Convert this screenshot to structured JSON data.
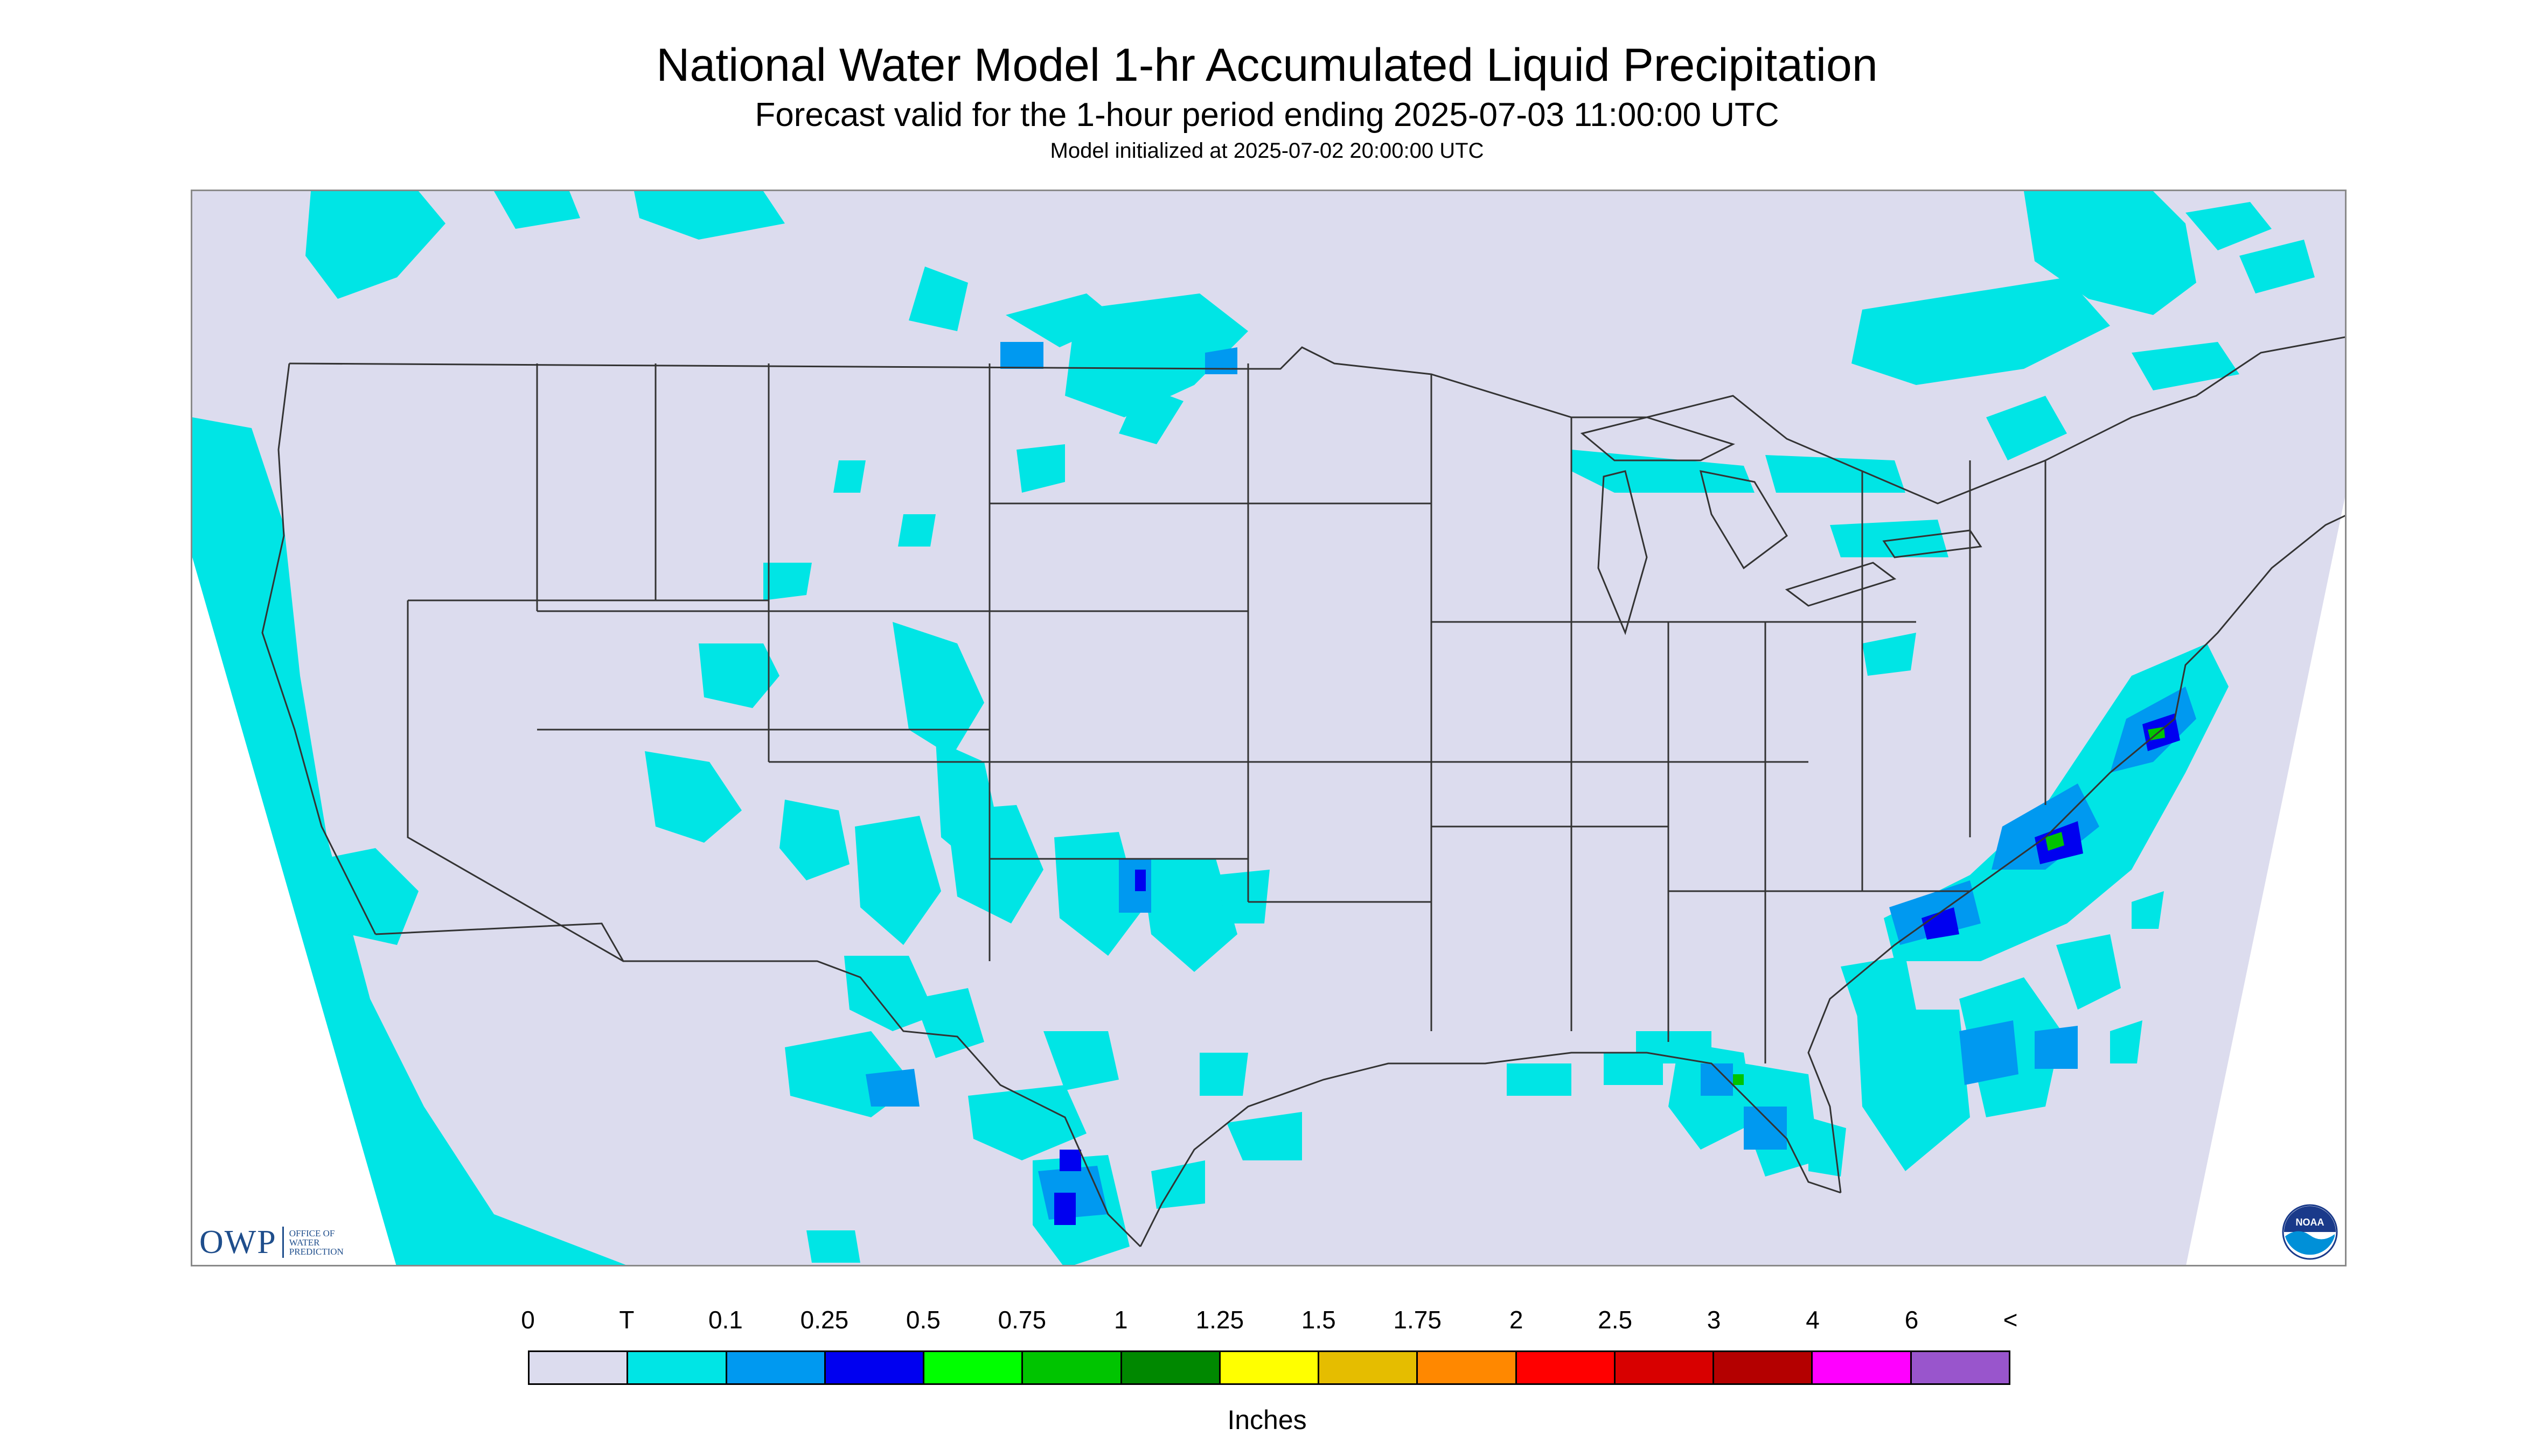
{
  "title": "National Water Model 1-hr Accumulated Liquid Precipitation",
  "subtitle": "Forecast valid for the 1-hour period ending 2025-07-03 11:00:00 UTC",
  "init_line": "Model initialized at 2025-07-02 20:00:00 UTC",
  "logo": {
    "owp_text": "OWP",
    "owp_sub": "OFFICE OF WATER PREDICTION",
    "noaa_text": "NOAA"
  },
  "legend": {
    "labels": [
      "0",
      "T",
      "0.1",
      "0.25",
      "0.5",
      "0.75",
      "1",
      "1.25",
      "1.5",
      "1.75",
      "2",
      "2.5",
      "3",
      "4",
      "6",
      "<"
    ],
    "colors": [
      "#dcdcee",
      "#00e5e5",
      "#0099f0",
      "#0000f0",
      "#00ff00",
      "#00c400",
      "#008800",
      "#ffff00",
      "#e5bd00",
      "#ff8800",
      "#ff0000",
      "#d80000",
      "#b40000",
      "#ff00ff",
      "#9955cc"
    ],
    "units": "Inches"
  },
  "colors": {
    "background": "#dcdcee",
    "trace": "#00e5e5",
    "light": "#0099f0",
    "moderate": "#0000f0",
    "heavy": "#00c400",
    "boundary": "#333333"
  }
}
